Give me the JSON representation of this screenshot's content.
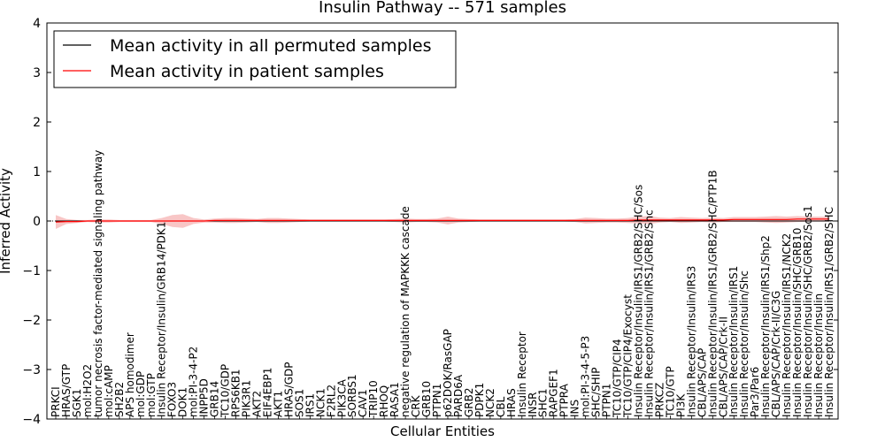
{
  "chart_data": {
    "type": "line",
    "title": "Insulin Pathway -- 571 samples",
    "xlabel": "Cellular Entities",
    "ylabel": "Inferred Activity",
    "ylim": [
      -4,
      4
    ],
    "yticks": [
      -4,
      -3,
      -2,
      -1,
      0,
      1,
      2,
      3,
      4
    ],
    "legend_position": "top-left",
    "colors": {
      "permuted": "#000000",
      "patient": "#ff0000",
      "band": "#f4a0a0"
    },
    "categories": [
      "PRKCI",
      "HRAS/GTP",
      "SGK1",
      "mol:H2O2",
      "tumor necrosis factor-mediated signaling pathway",
      "mol:cAMP",
      "SH2B2",
      "APS homodimer",
      "mol:GDP",
      "mol:GTP",
      "Insulin Receptor/Insulin/GRB14/PDK1",
      "FOXO3",
      "DOK1",
      "mol:PI-3-4-P2",
      "INPP5D",
      "GRB14",
      "TC10/GDP",
      "RPS6KB1",
      "PIK3R1",
      "AKT2",
      "EIF4EBP1",
      "AKT1",
      "HRAS/GDP",
      "SOS1",
      "IRS1",
      "NCK1",
      "F2RL2",
      "PIK3CA",
      "SORBS1",
      "CAV1",
      "TRIP10",
      "RHOQ",
      "RASA1",
      "negative regulation of MAPKKK cascade",
      "CRK",
      "GRB10",
      "PTPN1",
      "p62DOK/RasGAP",
      "PARD6A",
      "GRB2",
      "PDPK1",
      "NCK2",
      "CBL",
      "HRAS",
      "Insulin Receptor",
      "INSR",
      "SHC1",
      "RAPGEF1",
      "PTPRA",
      "INS",
      "mol:PI-3-4-5-P3",
      "SHC/SHIP",
      "PTPN1",
      "TC10/GTP/CIP4",
      "TC10/GTP/CIP4/Exocyst",
      "Insulin Receptor/Insulin/IRS1/GRB2/SHC/Sos",
      "Insulin Receptor/Insulin/IRS1/GRB2/Shc",
      "PRKCZ",
      "TC10/GTP",
      "PI3K",
      "Insulin Receptor/Insulin/IRS3",
      "CBL/APS/CAP",
      "Insulin Receptor/Insulin/IRS1/GRB2/SHC/PTP1B",
      "CBL/APS/CAP/Crk-II",
      "Insulin Receptor/Insulin/IRS1",
      "Insulin Receptor/Insulin/Shc",
      "Par3/Par6",
      "Insulin Receptor/Insulin/IRS1/Shp2",
      "CBL/APS/CAP/Crk-II/C3G",
      "Insulin Receptor/Insulin/IRS1/NCK2",
      "Insulin Receptor/Insulin/SHC/GRB10",
      "Insulin Receptor/Insulin/SHC/GRB2/Sos1",
      "Insulin Receptor/Insulin",
      "Insulin Receptor/Insulin/IRS1/GRB2/SHC"
    ],
    "series": [
      {
        "name": "Mean activity in all permuted samples",
        "color": "#000000",
        "values": [
          0,
          0,
          0,
          0,
          0,
          0,
          0,
          0,
          0,
          0,
          0,
          0,
          0,
          0,
          0,
          0,
          0,
          0,
          0,
          0,
          0,
          0,
          0,
          0,
          0,
          0,
          0,
          0,
          0,
          0,
          0,
          0,
          0,
          0,
          0,
          0,
          0,
          0,
          0,
          0,
          0,
          0,
          0,
          0,
          0,
          0,
          0,
          0,
          0,
          0,
          0,
          0,
          0,
          0,
          0,
          0,
          0,
          0,
          0,
          0,
          0,
          0,
          0,
          0,
          0,
          0,
          0,
          0,
          0,
          0,
          0,
          0,
          0,
          0
        ]
      },
      {
        "name": "Mean activity in patient samples",
        "color": "#ff0000",
        "values": [
          -0.02,
          -0.01,
          -0.01,
          0,
          0,
          0,
          0,
          0,
          0,
          0,
          0,
          0,
          0,
          0,
          0,
          0.01,
          0.01,
          0.01,
          0.01,
          0.01,
          0.01,
          0.01,
          0.01,
          0.01,
          0.01,
          0.01,
          0.01,
          0.01,
          0.01,
          0.01,
          0.01,
          0.01,
          0.01,
          0.01,
          0.01,
          0.01,
          0.01,
          0.01,
          0.01,
          0.01,
          0.01,
          0.01,
          0.01,
          0.01,
          0.01,
          0.01,
          0.01,
          0.01,
          0.01,
          0.01,
          0.01,
          0.01,
          0.01,
          0.01,
          0.01,
          0.02,
          0.02,
          0.02,
          0.02,
          0.02,
          0.02,
          0.02,
          0.02,
          0.02,
          0.03,
          0.03,
          0.03,
          0.03,
          0.03,
          0.03,
          0.04,
          0.04,
          0.04,
          0.04
        ],
        "band": [
          0.14,
          0.05,
          0.03,
          0.02,
          0.03,
          0.03,
          0.02,
          0.02,
          0.02,
          0.02,
          0.06,
          0.12,
          0.14,
          0.06,
          0.03,
          0.04,
          0.05,
          0.05,
          0.04,
          0.03,
          0.05,
          0.05,
          0.04,
          0.03,
          0.02,
          0.02,
          0.02,
          0.02,
          0.02,
          0.02,
          0.02,
          0.02,
          0.03,
          0.04,
          0.03,
          0.03,
          0.04,
          0.08,
          0.04,
          0.03,
          0.02,
          0.02,
          0.02,
          0.02,
          0.02,
          0.02,
          0.02,
          0.02,
          0.02,
          0.03,
          0.06,
          0.05,
          0.04,
          0.04,
          0.05,
          0.07,
          0.08,
          0.05,
          0.04,
          0.06,
          0.05,
          0.04,
          0.05,
          0.04,
          0.05,
          0.05,
          0.05,
          0.06,
          0.07,
          0.06,
          0.06,
          0.05,
          0.05,
          0.05
        ]
      }
    ]
  }
}
